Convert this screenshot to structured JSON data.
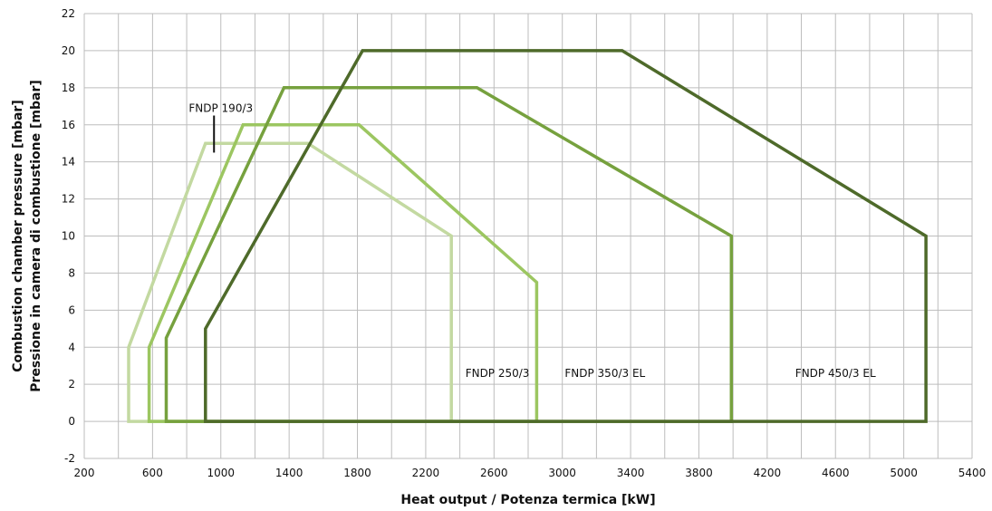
{
  "chart_data": {
    "type": "line",
    "title": "",
    "xlabel": "Heat output / Potenza termica [kW]",
    "ylabel_line1": "Combustion chamber pressure [mbar]",
    "ylabel_line2": "Pressione in camera di combustione [mbar]",
    "x_ticks": [
      "200",
      "600",
      "1000",
      "1400",
      "1800",
      "2200",
      "2600",
      "3000",
      "3400",
      "3800",
      "4200",
      "4600",
      "5000",
      "5400"
    ],
    "y_ticks": [
      "-2",
      "0",
      "2",
      "4",
      "6",
      "8",
      "10",
      "12",
      "14",
      "16",
      "18",
      "20",
      "22"
    ],
    "xlim": [
      200,
      5400
    ],
    "ylim": [
      -2,
      22
    ],
    "grid": true,
    "series": [
      {
        "name": "FNDP 190/3",
        "color": "#c3d9a1",
        "x": [
          460,
          460,
          910,
          1510,
          2350,
          2350,
          460
        ],
        "y": [
          0,
          4,
          15,
          15,
          10,
          0,
          0
        ]
      },
      {
        "name": "FNDP 250/3",
        "color": "#9cc661",
        "x": [
          580,
          580,
          1130,
          1810,
          2850,
          2850,
          580
        ],
        "y": [
          0,
          4,
          16,
          16,
          7.5,
          0,
          0
        ]
      },
      {
        "name": "FNDP 350/3 EL",
        "color": "#76a13e",
        "x": [
          680,
          680,
          1370,
          2500,
          3990,
          3990,
          680
        ],
        "y": [
          0,
          4.5,
          18,
          18,
          10,
          0,
          0
        ]
      },
      {
        "name": "FNDP 450/3 EL",
        "color": "#4e6a2a",
        "x": [
          910,
          910,
          1830,
          3350,
          5130,
          5130,
          910
        ],
        "y": [
          0,
          5,
          20,
          20,
          10,
          0,
          0
        ]
      }
    ],
    "annotations": [
      {
        "text": "FNDP 190/3",
        "x": 1000,
        "y": 16.9
      },
      {
        "text": "FNDP 250/3",
        "x": 2620,
        "y": 2.6
      },
      {
        "text": "FNDP 350/3 EL",
        "x": 3250,
        "y": 2.6
      },
      {
        "text": "FNDP 450/3 EL",
        "x": 4600,
        "y": 2.6
      }
    ],
    "pointer_line": {
      "x": 960,
      "y_top": 16.5,
      "y_bottom": 14.5
    }
  }
}
